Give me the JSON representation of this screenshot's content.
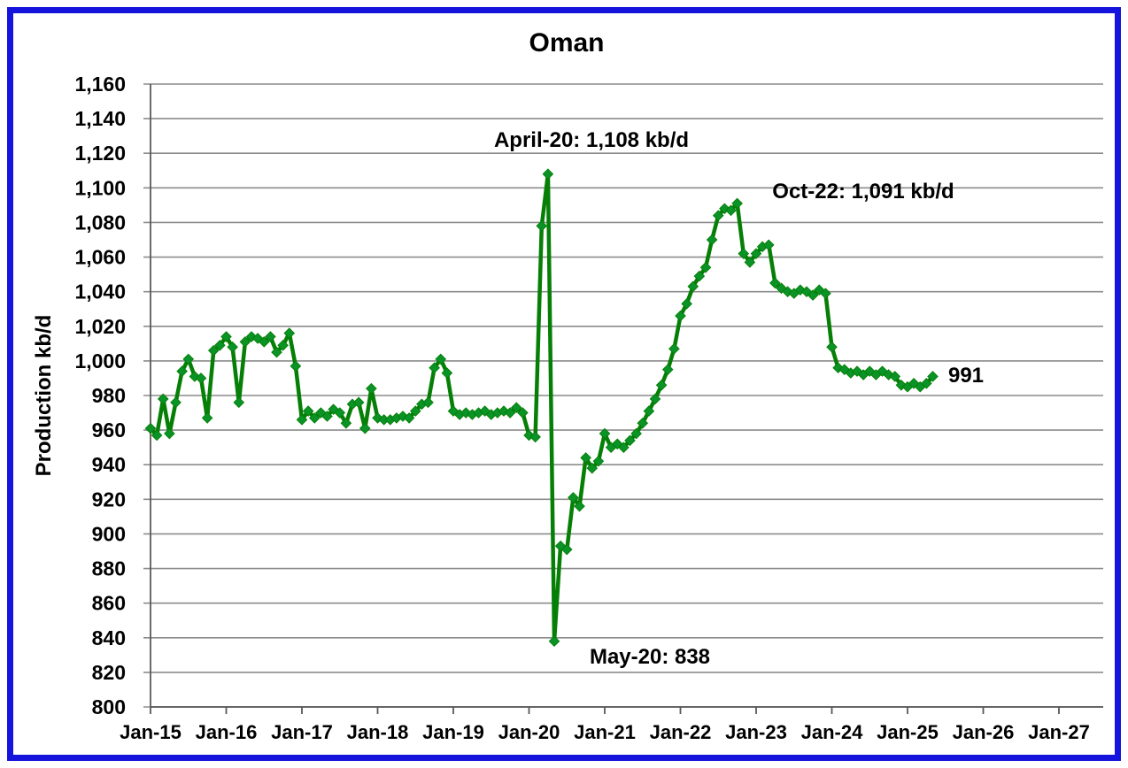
{
  "frame": {
    "border_color": "#1414dc",
    "background": "#ffffff"
  },
  "chart_data": {
    "type": "line",
    "title": "Oman",
    "xlabel": "",
    "ylabel": "Production kb/d",
    "ylim": [
      800,
      1160
    ],
    "y_tick_step": 20,
    "grid": "horizontal",
    "grid_color": "#8c8c8c",
    "axis_color": "#595959",
    "legend": "none",
    "y_tick_labels": [
      "800",
      "820",
      "840",
      "860",
      "880",
      "900",
      "920",
      "940",
      "960",
      "980",
      "1,000",
      "1,020",
      "1,040",
      "1,060",
      "1,080",
      "1,100",
      "1,120",
      "1,140",
      "1,160"
    ],
    "y_tick_values": [
      800,
      820,
      840,
      860,
      880,
      900,
      920,
      940,
      960,
      980,
      1000,
      1020,
      1040,
      1060,
      1080,
      1100,
      1120,
      1140,
      1160
    ],
    "x_tick_labels": [
      "Jan-15",
      "Jan-16",
      "Jan-17",
      "Jan-18",
      "Jan-19",
      "Jan-20",
      "Jan-21",
      "Jan-22",
      "Jan-23",
      "Jan-24",
      "Jan-25",
      "Jan-26",
      "Jan-27"
    ],
    "series": [
      {
        "name": "Oman crude production",
        "color": "#067f06",
        "marker": "diamond",
        "marker_color": "#0a9427",
        "start_month": "Jan-15",
        "end_month": "May-25",
        "values": [
          961,
          957,
          978,
          958,
          976,
          994,
          1001,
          991,
          990,
          967,
          1006,
          1009,
          1014,
          1008,
          976,
          1011,
          1014,
          1013,
          1011,
          1014,
          1005,
          1009,
          1016,
          997,
          966,
          971,
          967,
          970,
          968,
          972,
          970,
          964,
          975,
          976,
          961,
          984,
          967,
          966,
          966,
          967,
          968,
          967,
          971,
          975,
          976,
          996,
          1001,
          993,
          971,
          969,
          970,
          969,
          970,
          971,
          969,
          970,
          971,
          970,
          973,
          970,
          957,
          956,
          1078,
          1108,
          838,
          893,
          891,
          921,
          916,
          944,
          938,
          942,
          958,
          950,
          952,
          950,
          954,
          958,
          964,
          971,
          978,
          986,
          995,
          1007,
          1026,
          1033,
          1043,
          1049,
          1054,
          1070,
          1084,
          1088,
          1087,
          1091,
          1062,
          1057,
          1062,
          1066,
          1067,
          1045,
          1042,
          1040,
          1039,
          1041,
          1040,
          1038,
          1041,
          1039,
          1008,
          996,
          995,
          993,
          994,
          992,
          994,
          992,
          994,
          992,
          991,
          986,
          985,
          987,
          985,
          987,
          991
        ]
      }
    ],
    "annotations": [
      {
        "id": "peak-apr20",
        "text": "April-20: 1,108 kb/d"
      },
      {
        "id": "peak-oct22",
        "text": "Oct-22: 1,091 kb/d"
      },
      {
        "id": "trough-may20",
        "text": "May-20: 838"
      },
      {
        "id": "last-value",
        "text": "991"
      }
    ]
  }
}
